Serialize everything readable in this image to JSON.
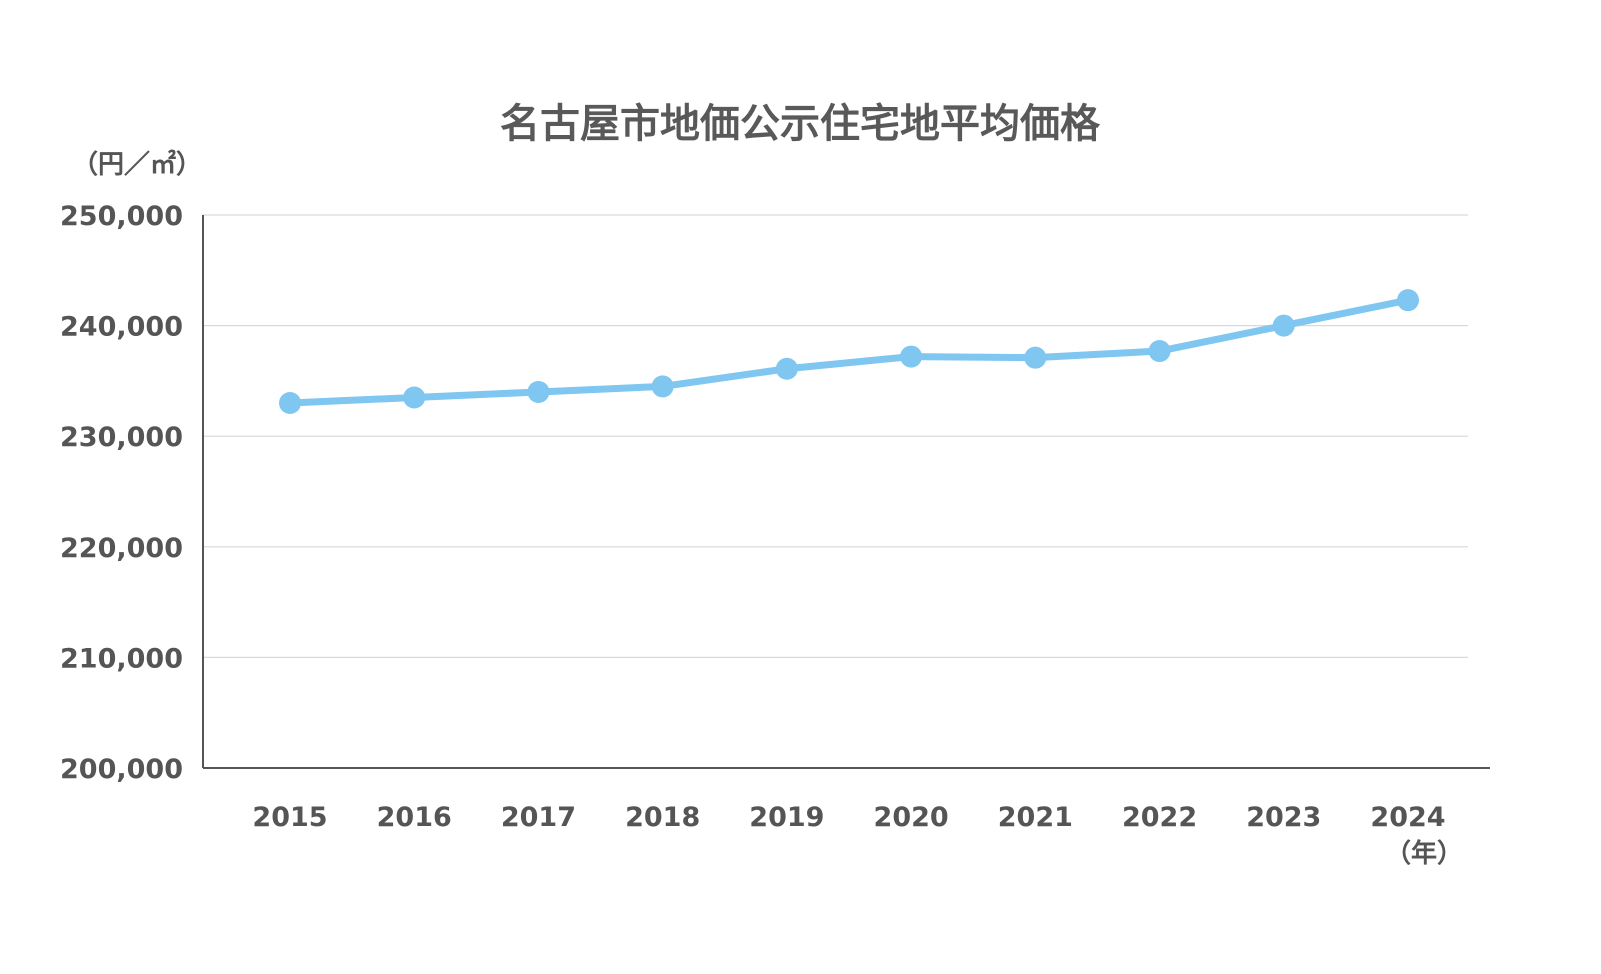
{
  "chart_data": {
    "type": "line",
    "title": "名古屋市地価公示住宅地平均価格",
    "ylabel": "（円／㎡）",
    "xlabel": "（年）",
    "categories": [
      "2015",
      "2016",
      "2017",
      "2018",
      "2019",
      "2020",
      "2021",
      "2022",
      "2023",
      "2024"
    ],
    "series": [
      {
        "values": [
          233000,
          233500,
          234000,
          234500,
          236100,
          237200,
          237100,
          237700,
          240000,
          242300
        ]
      }
    ],
    "ylim": [
      200000,
      250000
    ],
    "yticks": [
      200000,
      210000,
      220000,
      230000,
      240000,
      250000
    ],
    "ytick_labels": [
      "200,000",
      "210,000",
      "220,000",
      "230,000",
      "240,000",
      "250,000"
    ],
    "grid": true,
    "legend": "none",
    "colors": {
      "line": "#7fc6f1",
      "axis": "#555555",
      "grid": "#d9d9d9",
      "text": "#555555"
    }
  }
}
